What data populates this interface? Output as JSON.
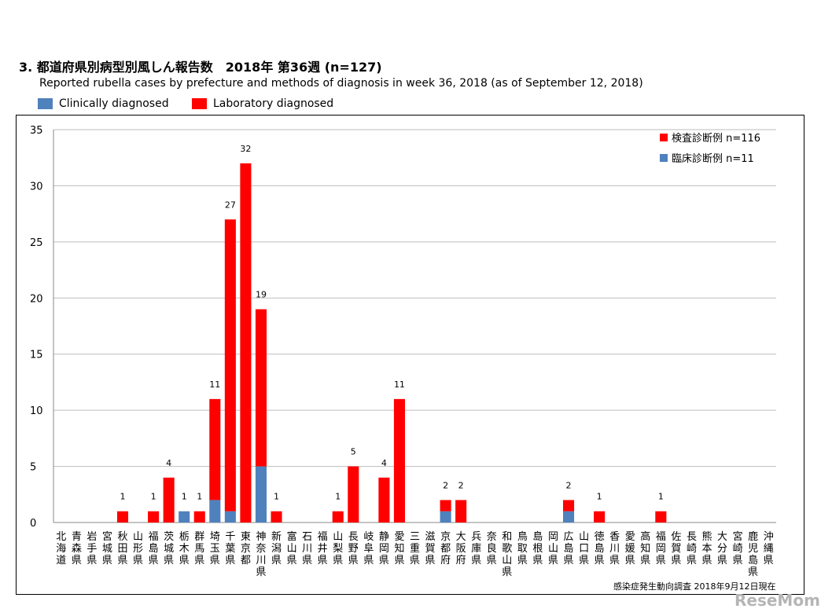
{
  "header": {
    "title": "3. 都道府県別病型別風しん報告数　2018年 第36週 (n=127)",
    "subtitle": "Reported rubella cases by prefecture and methods of diagnosis in week 36, 2018 (as of September 12, 2018)"
  },
  "legend_top": [
    {
      "label": "Clinically diagnosed",
      "color": "#4f81bd"
    },
    {
      "label": "Laboratory diagnosed",
      "color": "#ff0000"
    }
  ],
  "chart_data": {
    "type": "bar",
    "stacked": true,
    "categories": [
      "北海道",
      "青森県",
      "岩手県",
      "宮城県",
      "秋田県",
      "山形県",
      "福島県",
      "茨城県",
      "栃木県",
      "群馬県",
      "埼玉県",
      "千葉県",
      "東京都",
      "神奈川県",
      "新潟県",
      "富山県",
      "石川県",
      "福井県",
      "山梨県",
      "長野県",
      "岐阜県",
      "静岡県",
      "愛知県",
      "三重県",
      "滋賀県",
      "京都府",
      "大阪府",
      "兵庫県",
      "奈良県",
      "和歌山県",
      "鳥取県",
      "島根県",
      "岡山県",
      "広島県",
      "山口県",
      "徳島県",
      "香川県",
      "愛媛県",
      "高知県",
      "福岡県",
      "佐賀県",
      "長崎県",
      "熊本県",
      "大分県",
      "宮崎県",
      "鹿児島県",
      "沖縄県"
    ],
    "series": [
      {
        "name": "臨床診断例 n=11",
        "color": "#4f81bd",
        "values": [
          0,
          0,
          0,
          0,
          0,
          0,
          0,
          0,
          1,
          0,
          2,
          1,
          0,
          5,
          0,
          0,
          0,
          0,
          0,
          0,
          0,
          0,
          0,
          0,
          0,
          1,
          0,
          0,
          0,
          0,
          0,
          0,
          0,
          1,
          0,
          0,
          0,
          0,
          0,
          0,
          0,
          0,
          0,
          0,
          0,
          0,
          0
        ]
      },
      {
        "name": "検査診断例 n=116",
        "color": "#ff0000",
        "values": [
          0,
          0,
          0,
          0,
          1,
          0,
          1,
          4,
          0,
          1,
          9,
          26,
          32,
          14,
          1,
          0,
          0,
          0,
          1,
          5,
          0,
          4,
          11,
          0,
          0,
          1,
          2,
          0,
          0,
          0,
          0,
          0,
          0,
          1,
          0,
          1,
          0,
          0,
          0,
          1,
          0,
          0,
          0,
          0,
          0,
          0,
          0
        ]
      }
    ],
    "totals": [
      "",
      "",
      "",
      "",
      "1",
      "",
      "1",
      "4",
      "1",
      "1",
      "11",
      "27",
      "32",
      "19",
      "1",
      "",
      "",
      "",
      "1",
      "5",
      "",
      "4",
      "11",
      "",
      "",
      "2",
      "2",
      "",
      "",
      "",
      "",
      "",
      "",
      "2",
      "",
      "1",
      "",
      "",
      "",
      "1",
      "",
      "",
      "",
      "",
      "",
      "",
      ""
    ],
    "ylim": [
      0,
      35
    ],
    "yticks": [
      "0",
      "5",
      "10",
      "15",
      "20",
      "25",
      "30",
      "35"
    ],
    "grid": true,
    "legend_position": "top-right",
    "inner_legend": [
      {
        "label": "検査診断例 n=116",
        "color": "#ff0000"
      },
      {
        "label": "臨床診断例 n=11",
        "color": "#4f81bd"
      }
    ]
  },
  "source_note": "感染症発生動向調査 2018年9月12日現在",
  "watermark": "ReseMom"
}
